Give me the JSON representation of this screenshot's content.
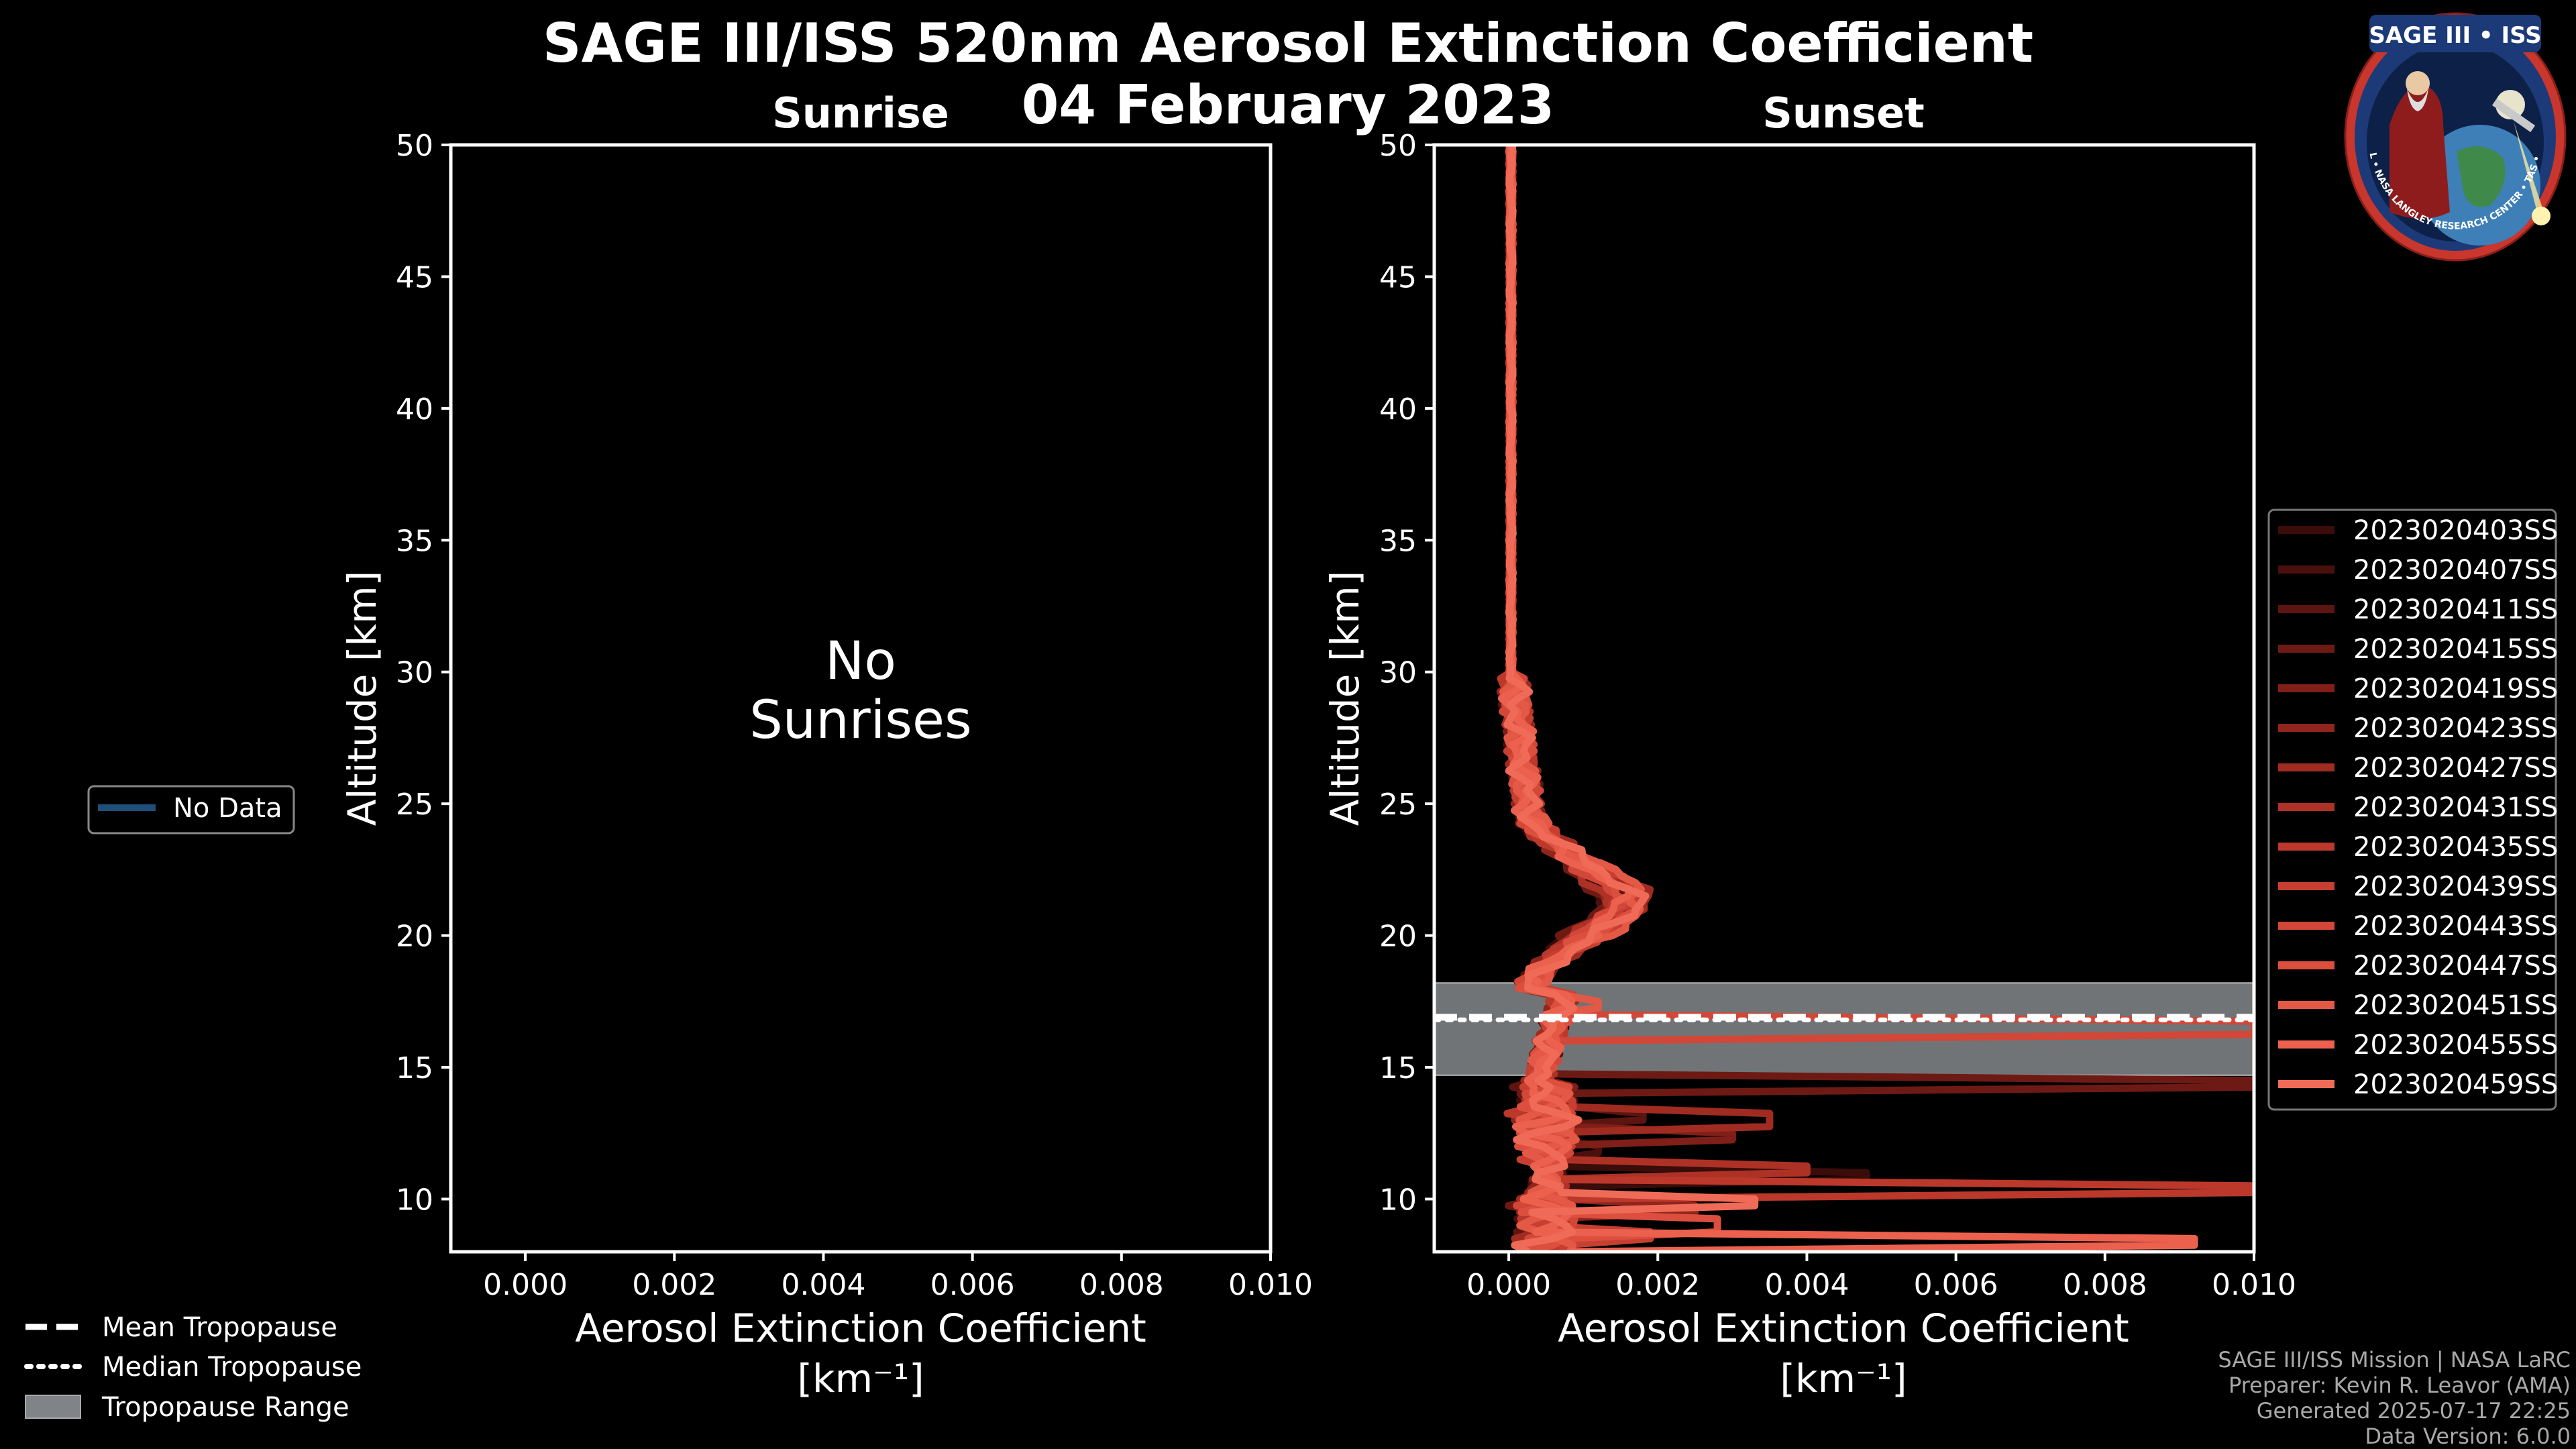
{
  "title_line1": "SAGE III/ISS 520nm Aerosol Extinction Coefficient",
  "title_line2": "04 February 2023",
  "colors": {
    "background": "#000000",
    "tropopause_fill": "#808488",
    "no_data_line": "#1f4e79"
  },
  "left_legend": {
    "entries": [
      "No Data"
    ]
  },
  "bottom_legend": {
    "entries": [
      "Mean Tropopause",
      "Median Tropopause",
      "Tropopause Range"
    ]
  },
  "footer": {
    "line1": "SAGE III/ISS Mission | NASA LaRC",
    "line2": "Preparer: Kevin R. Leavor (AMA)",
    "line3": "Generated 2025-07-17 22:25",
    "line4": "Data Version: 6.0.0"
  },
  "badge": {
    "title": "SAGE III • ISS",
    "ring_text": "BALL • NASA LANGLEY RESEARCH CENTER • TAS • ESA"
  },
  "chart_data": [
    {
      "type": "line",
      "panel": "Sunrise",
      "title": "Sunrise",
      "xlabel": "Aerosol Extinction Coefficient",
      "xlabel_units": "[km⁻¹]",
      "ylabel": "Altitude [km]",
      "xlim": [
        -0.001,
        0.01
      ],
      "ylim": [
        8,
        50
      ],
      "xticks": [
        "0.000",
        "0.002",
        "0.004",
        "0.006",
        "0.008",
        "0.010"
      ],
      "yticks": [
        "10",
        "15",
        "20",
        "25",
        "30",
        "35",
        "40",
        "45",
        "50"
      ],
      "annotation_line1": "No",
      "annotation_line2": "Sunrises",
      "series": []
    },
    {
      "type": "line",
      "panel": "Sunset",
      "title": "Sunset",
      "xlabel": "Aerosol Extinction Coefficient",
      "xlabel_units": "[km⁻¹]",
      "ylabel": "Altitude [km]",
      "xlim": [
        -0.001,
        0.01
      ],
      "ylim": [
        8,
        50
      ],
      "xticks": [
        "0.000",
        "0.002",
        "0.004",
        "0.006",
        "0.008",
        "0.010"
      ],
      "yticks": [
        "10",
        "15",
        "20",
        "25",
        "30",
        "35",
        "40",
        "45",
        "50"
      ],
      "tropopause": {
        "mean": 16.9,
        "median": 16.8,
        "range": [
          14.7,
          18.2
        ]
      },
      "series": [
        {
          "name": "2023020403SS",
          "color": "#3a0c0a",
          "spike_alt": 10.9,
          "spike_val": 0.0048,
          "peak": 0.0011
        },
        {
          "name": "2023020407SS",
          "color": "#4a100d",
          "spike_alt": 11.8,
          "spike_val": 0.0012,
          "peak": 0.0012
        },
        {
          "name": "2023020411SS",
          "color": "#5c1510",
          "spike_alt": 13.2,
          "spike_val": 0.0018,
          "peak": 0.0013
        },
        {
          "name": "2023020415SS",
          "color": "#6e1a14",
          "spike_alt": 14.3,
          "spike_val": 0.01,
          "peak": 0.001
        },
        {
          "name": "2023020419SS",
          "color": "#7f1f18",
          "spike_alt": 12.4,
          "spike_val": 0.003,
          "peak": 0.0014
        },
        {
          "name": "2023020423SS",
          "color": "#90251c",
          "spike_alt": 9.6,
          "spike_val": 0.0025,
          "peak": 0.0012
        },
        {
          "name": "2023020427SS",
          "color": "#a02b21",
          "spike_alt": 13.0,
          "spike_val": 0.0035,
          "peak": 0.0016
        },
        {
          "name": "2023020431SS",
          "color": "#ae3126",
          "spike_alt": 11.2,
          "spike_val": 0.004,
          "peak": 0.0011
        },
        {
          "name": "2023020435SS",
          "color": "#bb382b",
          "spike_alt": 10.3,
          "spike_val": 0.01,
          "peak": 0.0013
        },
        {
          "name": "2023020439SS",
          "color": "#c73f31",
          "spike_alt": 8.7,
          "spike_val": 0.0019,
          "peak": 0.0015
        },
        {
          "name": "2023020443SS",
          "color": "#d24737",
          "spike_alt": 16.5,
          "spike_val": 0.01,
          "peak": 0.0012
        },
        {
          "name": "2023020447SS",
          "color": "#dc4f3e",
          "spike_alt": 9.0,
          "spike_val": 0.0028,
          "peak": 0.0014
        },
        {
          "name": "2023020451SS",
          "color": "#e45846",
          "spike_alt": 17.3,
          "spike_val": 0.0012,
          "peak": 0.0016
        },
        {
          "name": "2023020455SS",
          "color": "#eb614e",
          "spike_alt": 8.4,
          "spike_val": 0.0092,
          "peak": 0.0013
        },
        {
          "name": "2023020459SS",
          "color": "#f06b57",
          "spike_alt": 9.9,
          "spike_val": 0.0033,
          "peak": 0.0015
        }
      ]
    }
  ]
}
